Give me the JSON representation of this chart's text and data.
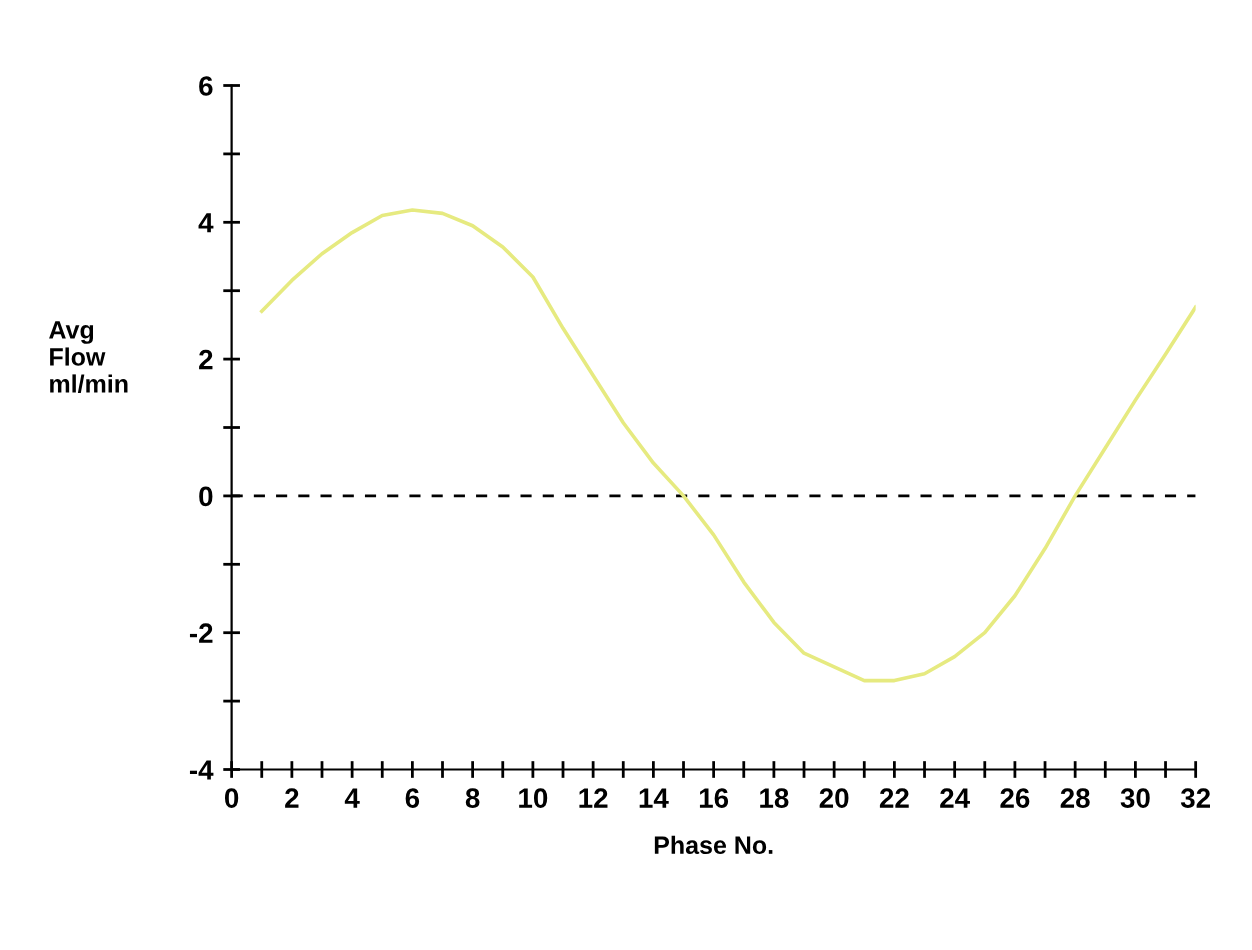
{
  "chart_data": {
    "type": "line",
    "xlabel": "Phase No.",
    "ylabel": "Avg\nFlow\nml/min",
    "x": [
      1,
      2,
      3,
      4,
      5,
      6,
      7,
      8,
      9,
      10,
      11,
      12,
      13,
      14,
      15,
      16,
      17,
      18,
      19,
      20,
      21,
      22,
      23,
      24,
      25,
      26,
      27,
      28,
      29,
      30,
      31,
      32
    ],
    "series": [
      {
        "color": "#e6ea80",
        "values": [
          2.7,
          3.15,
          3.54,
          3.85,
          4.1,
          4.18,
          4.13,
          3.95,
          3.64,
          3.2,
          2.45,
          1.76,
          1.07,
          0.48,
          0.0,
          -0.57,
          -1.26,
          -1.85,
          -2.3,
          -2.5,
          -2.7,
          -2.7,
          -2.6,
          -2.35,
          -2.0,
          -1.46,
          -0.77,
          0.0,
          0.7,
          1.4,
          2.07,
          2.76
        ]
      }
    ],
    "xlim": [
      0,
      32
    ],
    "ylim": [
      -4,
      6
    ],
    "xticks": [
      0,
      {
        "value": 1,
        "label": null
      },
      2,
      {
        "value": 3,
        "label": null
      },
      4,
      {
        "value": 5,
        "label": null
      },
      6,
      {
        "value": 7,
        "label": null
      },
      8,
      {
        "value": 9,
        "label": null
      },
      10,
      {
        "value": 11,
        "label": null
      },
      12,
      {
        "value": 13,
        "label": null
      },
      14,
      {
        "value": 15,
        "label": null
      },
      16,
      {
        "value": 17,
        "label": null
      },
      18,
      {
        "value": 19,
        "label": null
      },
      20,
      {
        "value": 21,
        "label": null
      },
      22,
      {
        "value": 23,
        "label": null
      },
      24,
      {
        "value": 25,
        "label": null
      },
      26,
      {
        "value": 27,
        "label": null
      },
      28,
      {
        "value": 29,
        "label": null
      },
      30,
      {
        "value": 31,
        "label": null
      },
      32
    ],
    "yticks": [
      -4,
      {
        "value": -3,
        "label": null
      },
      -2,
      {
        "value": -1,
        "label": null
      },
      0,
      {
        "value": 1,
        "label": null
      },
      2,
      {
        "value": 3,
        "label": null
      },
      4,
      {
        "value": 5,
        "label": null
      },
      6
    ],
    "ref_lines": [
      {
        "axis": "y",
        "value": 0,
        "color": "#000000",
        "line_style": "dashed"
      }
    ],
    "grid": false,
    "legend": false,
    "marker": "none",
    "line_style": "solid"
  }
}
